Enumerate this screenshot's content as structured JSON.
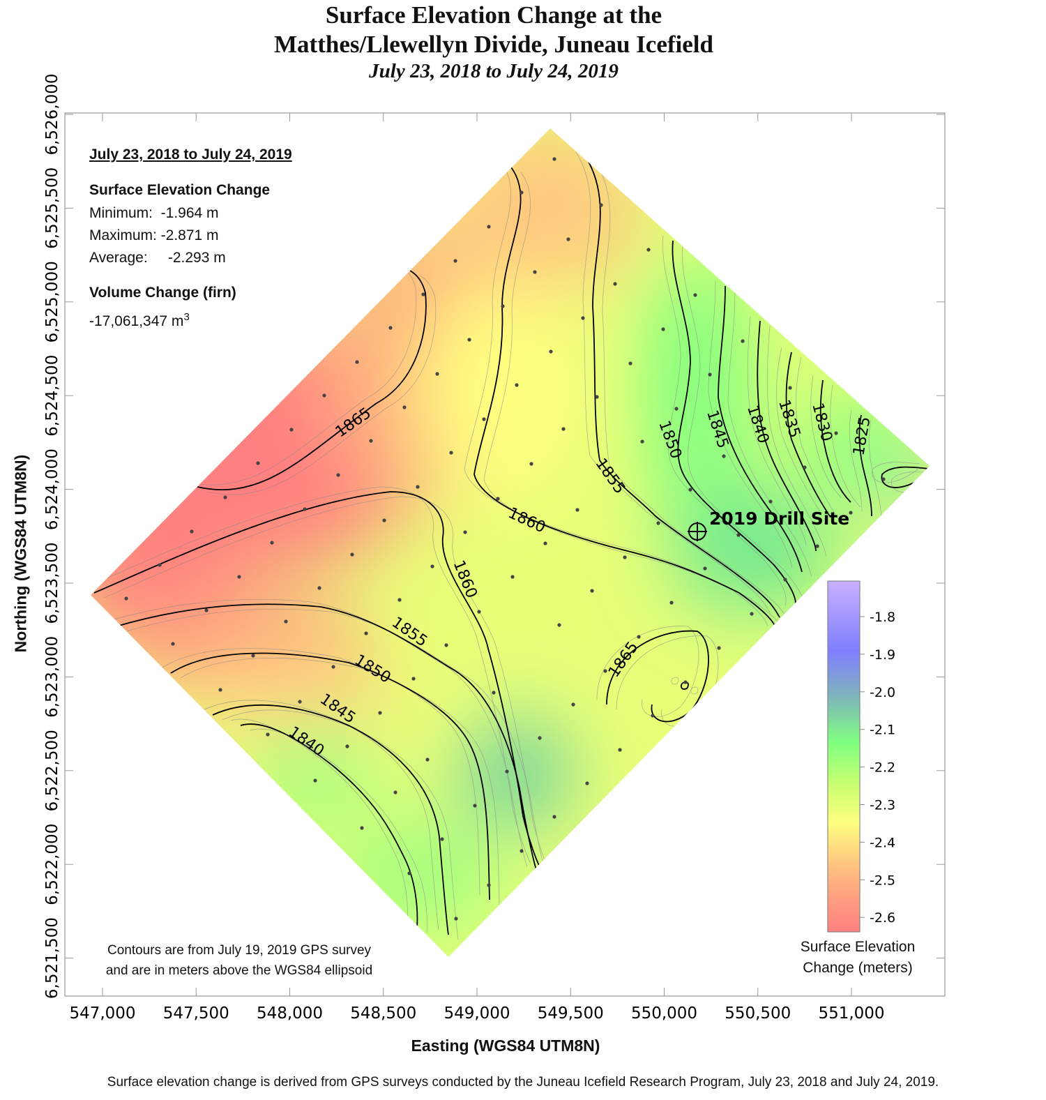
{
  "title": {
    "line1": "Surface Elevation Change at the",
    "line2": "Matthes/Llewellyn Divide, Juneau Icefield",
    "subtitle": "July 23, 2018 to July 24, 2019"
  },
  "info": {
    "period": "July 23, 2018 to July 24, 2019",
    "sec_heading": "Surface Elevation Change",
    "minimum": "Minimum:  -1.964 m",
    "maximum": "Maximum: -2.871 m",
    "average": "Average:     -2.293 m",
    "vol_heading": "Volume Change (firn)",
    "volume": "-17,061,347 m",
    "volume_unit_sup": "3"
  },
  "axes": {
    "xlabel": "Easting (WGS84 UTM8N)",
    "ylabel": "Northing (WGS84 UTM8N)",
    "xticks": [
      "547,000",
      "547,500",
      "548,000",
      "548,500",
      "549,000",
      "549,500",
      "550,000",
      "550,500",
      "551,000"
    ],
    "yticks": [
      "6,526,000",
      "6,525,500",
      "6,525,000",
      "6,524,500",
      "6,524,000",
      "6,523,500",
      "6,523,000",
      "6,522,500",
      "6,522,000",
      "6,521,500"
    ]
  },
  "contours": {
    "unit": "meters above the WGS84 ellipsoid",
    "labels": [
      "1865",
      "1860",
      "1860",
      "1855",
      "1850",
      "1845",
      "1840",
      "1855",
      "1850",
      "1845",
      "1840",
      "1835",
      "1830",
      "1825",
      "1865"
    ]
  },
  "drill_site": {
    "label": "2019 Drill Site",
    "icon": "crosshair-circle-icon"
  },
  "contour_note": {
    "line1": "Contours are from July 19, 2019 GPS survey",
    "line2": "and are in meters above the WGS84 ellipsoid"
  },
  "colorbar": {
    "title_line1": "Surface Elevation",
    "title_line2": "Change (meters)",
    "ticks": [
      "-1.8",
      "-1.9",
      "-2.0",
      "-2.1",
      "-2.2",
      "-2.3",
      "-2.4",
      "-2.5",
      "-2.6"
    ],
    "colors": {
      "-1.75": "#c8b0ff",
      "-1.9": "#7f7fff",
      "-2.0": "#7fb0c0",
      "-2.1": "#80ff80",
      "-2.2": "#c8ff70",
      "-2.3": "#ffff80",
      "-2.4": "#ffc880",
      "-2.5": "#ffa080",
      "-2.6": "#ff8080"
    }
  },
  "footer": "Surface elevation change is derived from GPS surveys conducted by the Juneau Icefield Research Program, July 23, 2018 and July 24, 2019."
}
